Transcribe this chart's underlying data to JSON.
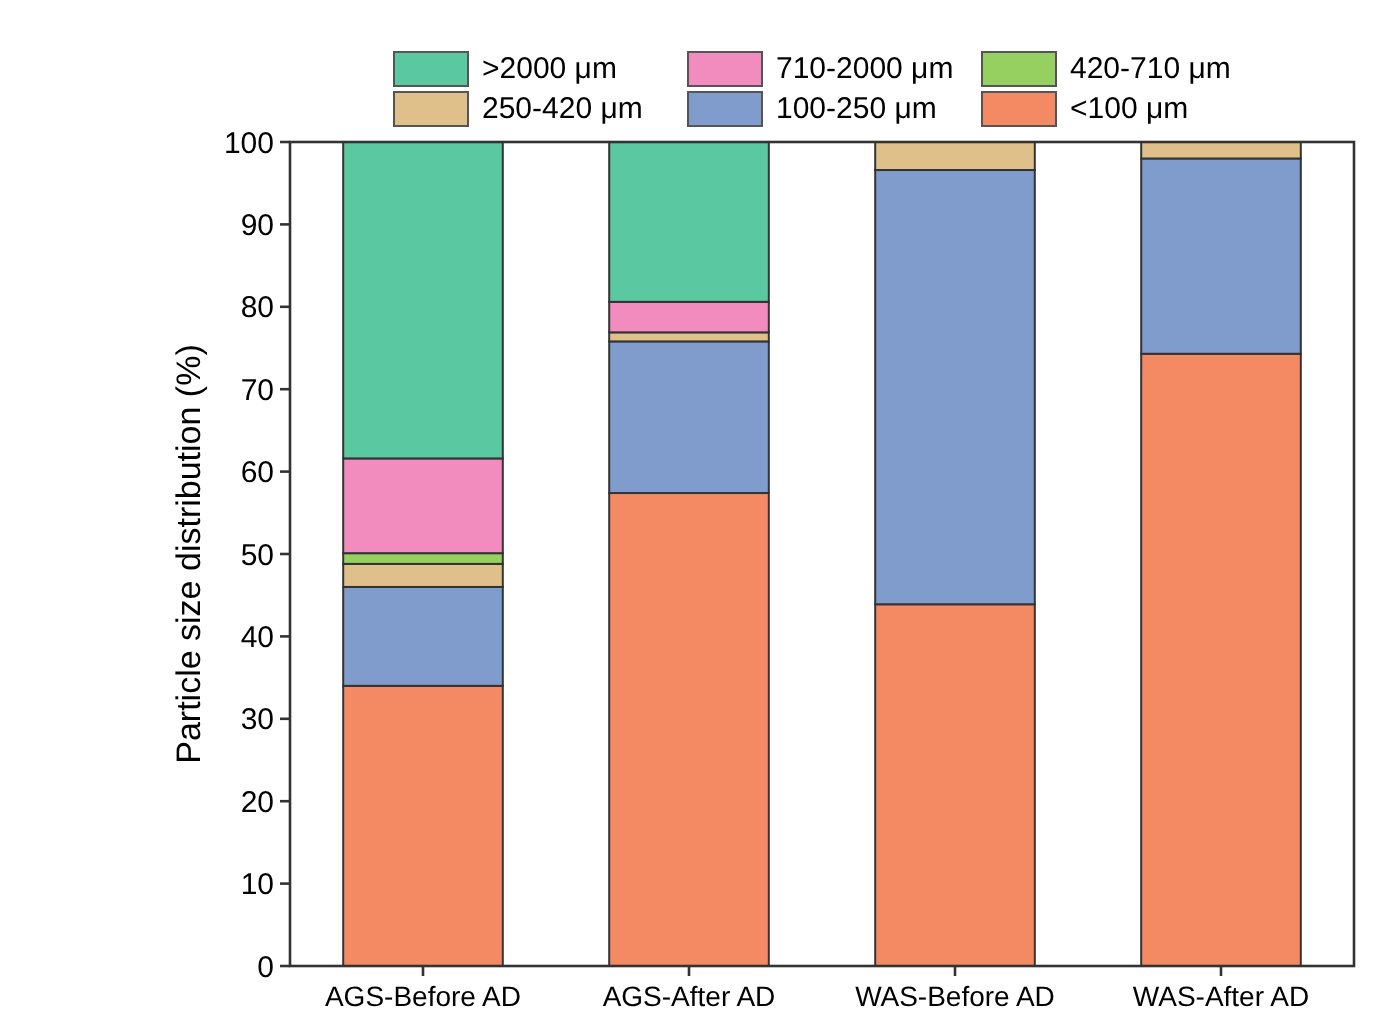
{
  "chart_data": {
    "type": "bar",
    "stacked": true,
    "ylabel": "Particle size distribution (%)",
    "categories": [
      "AGS-Before AD",
      "AGS-After AD",
      "WAS-Before AD",
      "WAS-After AD"
    ],
    "series": [
      {
        "name": "<100 μm",
        "color": "#f48a64",
        "values": [
          34,
          57.4,
          43.9,
          74.3
        ]
      },
      {
        "name": "100-250 μm",
        "color": "#7f9ccc",
        "values": [
          12,
          18.4,
          52.7,
          23.7
        ]
      },
      {
        "name": "250-420 μm",
        "color": "#e0c08a",
        "values": [
          2.8,
          1.1,
          3.4,
          2.0
        ]
      },
      {
        "name": "420-710 μm",
        "color": "#96d060",
        "values": [
          1.3,
          null,
          0,
          0
        ]
      },
      {
        "name": "710-2000 μm",
        "color": "#f28cbf",
        "values": [
          11.5,
          3.7,
          0,
          0
        ]
      },
      {
        "name": ">2000 μm",
        "color": "#5ac8a0",
        "values": [
          38.4,
          19.4,
          0,
          0
        ]
      }
    ],
    "ylim": [
      0,
      100
    ],
    "yticks": [
      0,
      10,
      20,
      30,
      40,
      50,
      60,
      70,
      80,
      90,
      100
    ],
    "grid": false,
    "legend": "top"
  }
}
